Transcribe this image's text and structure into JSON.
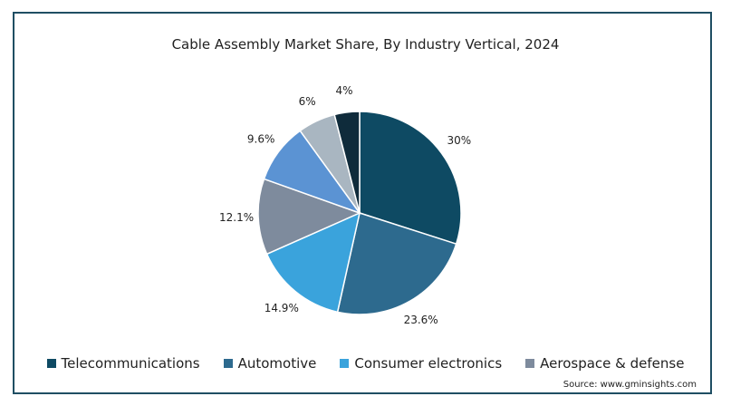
{
  "chart_data": {
    "type": "pie",
    "title": "Cable Assembly Market Share, By Industry Vertical, 2024",
    "slices": [
      {
        "name": "Telecommunications",
        "value": 30,
        "label": "30%",
        "color": "#0e4a63"
      },
      {
        "name": "Automotive",
        "value": 23.6,
        "label": "23.6%",
        "color": "#2d6a8e"
      },
      {
        "name": "Consumer electronics",
        "value": 14.9,
        "label": "14.9%",
        "color": "#3aa3dc"
      },
      {
        "name": "Aerospace & defense",
        "value": 12.1,
        "label": "12.1%",
        "color": "#7e8b9d"
      },
      {
        "name": "",
        "value": 9.6,
        "label": "9.6%",
        "color": "#5b93d3"
      },
      {
        "name": "",
        "value": 6,
        "label": "6%",
        "color": "#a9b6c1"
      },
      {
        "name": "",
        "value": 4,
        "label": "4%",
        "color": "#0f2b3b"
      }
    ],
    "legend_position": "bottom"
  },
  "legend": [
    {
      "label": "Telecommunications",
      "color": "#0e4a63"
    },
    {
      "label": "Automotive",
      "color": "#2d6a8e"
    },
    {
      "label": "Consumer electronics",
      "color": "#3aa3dc"
    },
    {
      "label": "Aerospace & defense",
      "color": "#7e8b9d"
    }
  ],
  "source": "Source: www.gminsights.com"
}
